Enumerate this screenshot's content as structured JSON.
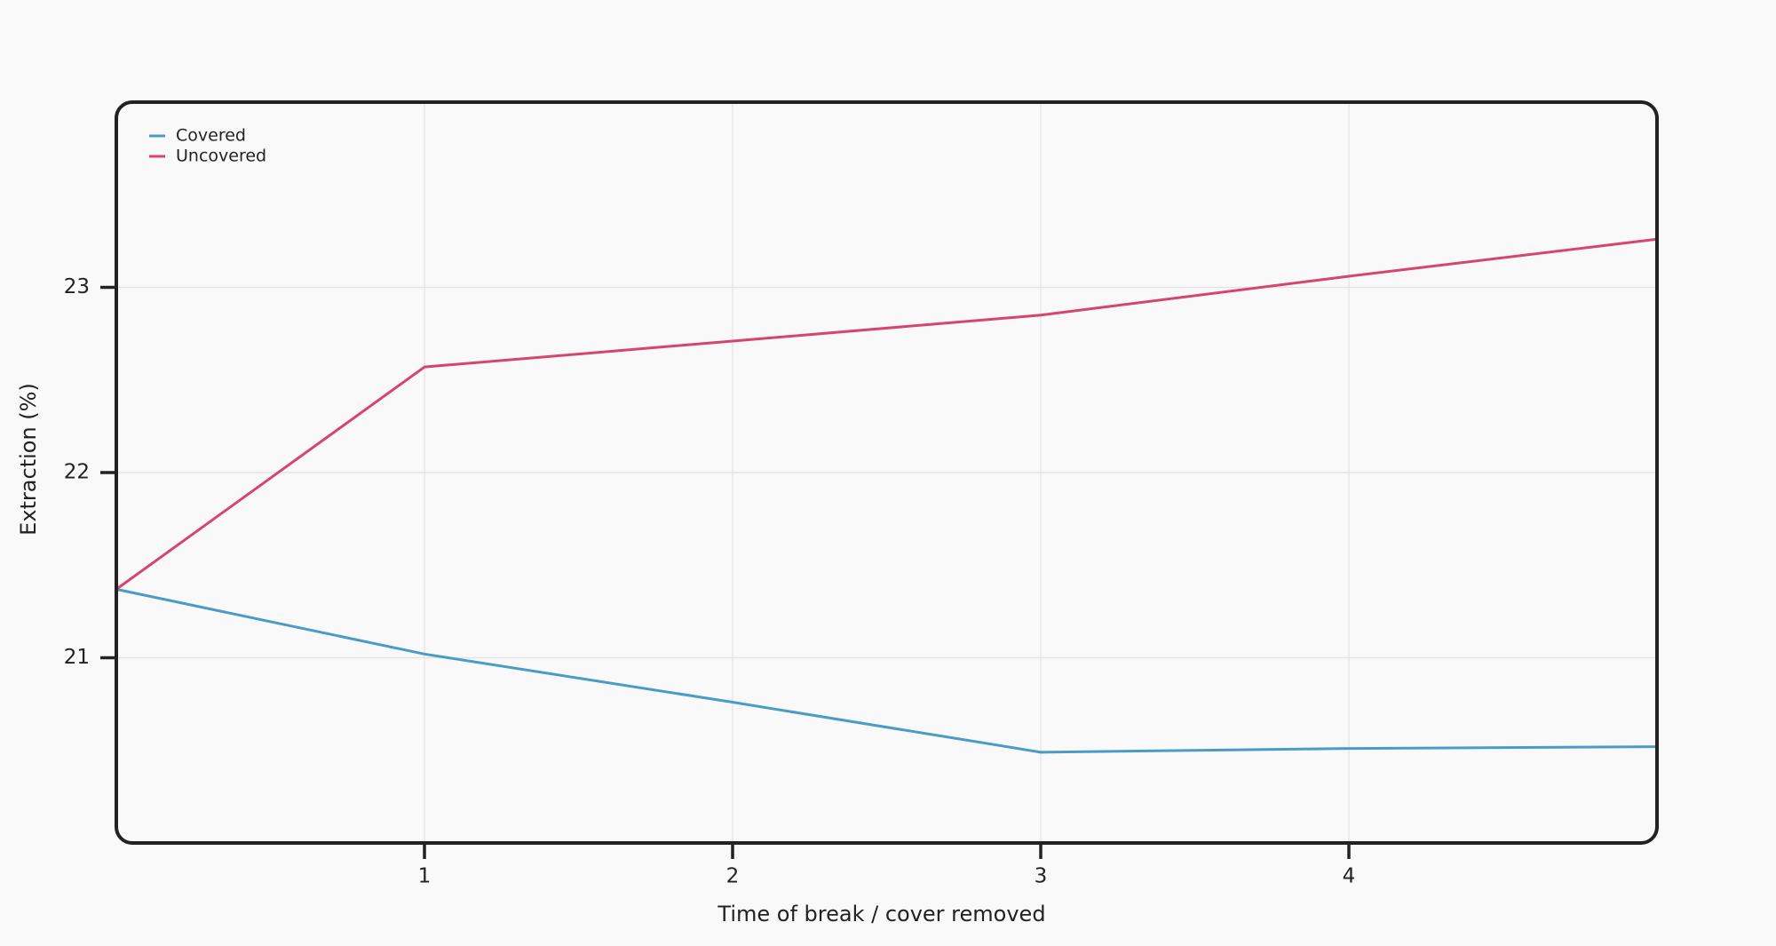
{
  "chart_data": {
    "type": "line",
    "x": [
      0,
      1,
      2,
      3,
      4,
      5
    ],
    "series": [
      {
        "name": "Covered",
        "color": "#4a9cc7",
        "values": [
          21.37,
          21.02,
          20.76,
          20.49,
          20.51,
          20.52
        ]
      },
      {
        "name": "Uncovered",
        "color": "#d6456f",
        "values": [
          21.37,
          22.57,
          22.71,
          22.85,
          23.06,
          23.26
        ]
      }
    ],
    "xlabel": "Time of break / cover removed",
    "ylabel": "Extraction (%)",
    "xlim": [
      0,
      5
    ],
    "xticks": [
      1,
      2,
      3,
      4
    ],
    "ylim": [
      20,
      24
    ],
    "yticks": [
      21,
      22,
      23
    ],
    "grid": true,
    "legend": "upper left"
  }
}
